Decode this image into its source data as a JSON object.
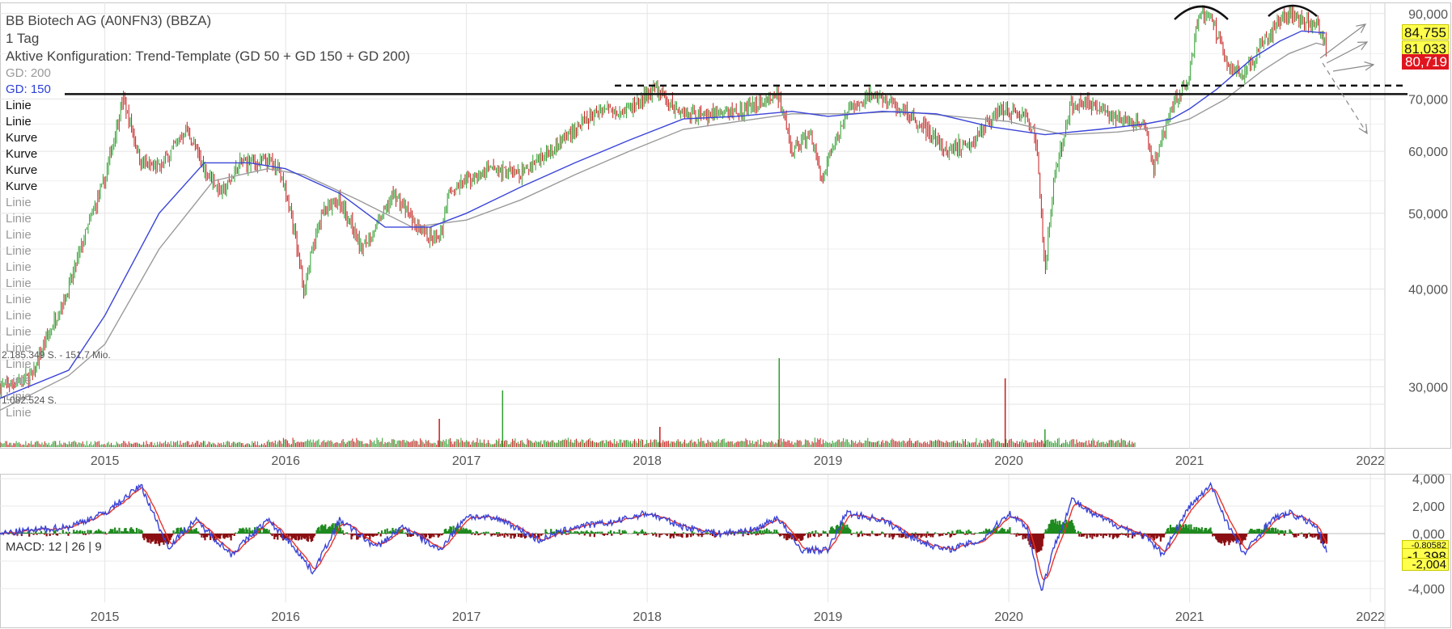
{
  "header": {
    "title": "BB Biotech AG (A0NFN3) (BBZA)",
    "interval": "1 Tag",
    "config": "Aktive Konfiguration: Trend-Template (GD 50 + GD 150 + GD 200)"
  },
  "legend": {
    "items": [
      "GD: 200",
      "GD: 150",
      "Linie",
      "Linie",
      "Kurve",
      "Kurve",
      "Kurve",
      "Kurve",
      "Linie",
      "Linie",
      "Linie",
      "Linie",
      "Linie",
      "Linie",
      "Linie",
      "Linie",
      "Linie",
      "Linie",
      "Linie",
      "Linie",
      "Linie",
      "Linie"
    ]
  },
  "volume": {
    "label1": "2.185.349 S. - 151,7 Mio.",
    "label2": "1.082.524 S."
  },
  "macd": {
    "label": "MACD: 12 | 26 | 9"
  },
  "price_tags": [
    "84,755",
    "81,033",
    "80,719"
  ],
  "macd_tags": [
    "-0,80582",
    "-1,398",
    "-2,004"
  ],
  "colors": {
    "candle_up": "#2e9e2e",
    "candle_down": "#c51b1b",
    "gd150": "#3a44d8",
    "gd200": "#9a9a9a",
    "macd_line": "#3a44d8",
    "signal_line": "#e8322a",
    "hist_up": "#1f8a1f",
    "hist_down": "#8b0f12",
    "tag_yellow": "#ffff4d",
    "tag_red": "#e0141e"
  },
  "chart_data": {
    "type": "line",
    "title": "BB Biotech AG (A0NFN3) (BBZA)",
    "y_scale": "log",
    "ylim": [
      25000,
      93000
    ],
    "y_ticks": [
      "90,000",
      "70,000",
      "60,000",
      "50,000",
      "40,000",
      "30,000"
    ],
    "x_ticks": [
      "2015",
      "2016",
      "2017",
      "2018",
      "2019",
      "2020",
      "2021",
      "2022"
    ],
    "x_range": [
      2014.42,
      2022.08
    ],
    "grid": true,
    "series": [
      {
        "name": "Kurs",
        "x": [
          2014.42,
          2014.6,
          2014.8,
          2015.0,
          2015.1,
          2015.2,
          2015.3,
          2015.45,
          2015.55,
          2015.65,
          2015.75,
          2015.85,
          2015.95,
          2016.02,
          2016.1,
          2016.2,
          2016.3,
          2016.42,
          2016.5,
          2016.6,
          2016.75,
          2016.85,
          2016.9,
          2017.0,
          2017.15,
          2017.3,
          2017.45,
          2017.6,
          2017.75,
          2017.9,
          2018.05,
          2018.15,
          2018.25,
          2018.4,
          2018.55,
          2018.72,
          2018.8,
          2018.9,
          2018.97,
          2019.1,
          2019.25,
          2019.4,
          2019.55,
          2019.65,
          2019.8,
          2019.95,
          2020.1,
          2020.15,
          2020.2,
          2020.25,
          2020.35,
          2020.45,
          2020.6,
          2020.75,
          2020.8,
          2020.9,
          2021.0,
          2021.05,
          2021.12,
          2021.2,
          2021.3,
          2021.4,
          2021.5,
          2021.55,
          2021.65,
          2021.72,
          2021.76
        ],
        "values": [
          30000,
          31000,
          40000,
          55000,
          70000,
          58000,
          57000,
          64000,
          57000,
          53000,
          58000,
          58000,
          58000,
          51000,
          40000,
          50000,
          52000,
          45000,
          48000,
          53000,
          47000,
          46000,
          53000,
          55000,
          57000,
          56000,
          60000,
          64000,
          68000,
          68000,
          72000,
          68000,
          67000,
          67000,
          68000,
          71000,
          60000,
          63000,
          55000,
          67000,
          71000,
          68000,
          64000,
          60000,
          62000,
          68000,
          66000,
          62000,
          42000,
          55000,
          69000,
          69000,
          66000,
          65000,
          57000,
          68000,
          75000,
          90000,
          89000,
          78000,
          75000,
          82000,
          88000,
          90000,
          88000,
          86000,
          80719
        ]
      },
      {
        "name": "GD: 150",
        "x": [
          2014.42,
          2014.8,
          2015.0,
          2015.3,
          2015.55,
          2015.8,
          2016.0,
          2016.3,
          2016.55,
          2016.8,
          2017.0,
          2017.3,
          2017.6,
          2017.9,
          2018.2,
          2018.5,
          2018.8,
          2019.0,
          2019.3,
          2019.6,
          2019.9,
          2020.2,
          2020.5,
          2020.75,
          2020.9,
          2021.0,
          2021.15,
          2021.35,
          2021.5,
          2021.62,
          2021.75
        ],
        "values": [
          29000,
          31500,
          37000,
          50000,
          58000,
          58000,
          57000,
          53000,
          48000,
          48000,
          50000,
          54000,
          58000,
          62000,
          66000,
          66500,
          67500,
          66500,
          67500,
          67000,
          64500,
          63000,
          64000,
          65000,
          66000,
          68000,
          72000,
          79000,
          83000,
          85500,
          85000
        ]
      },
      {
        "name": "GD: 200",
        "x": [
          2014.42,
          2014.8,
          2015.0,
          2015.3,
          2015.6,
          2015.9,
          2016.1,
          2016.4,
          2016.7,
          2017.0,
          2017.3,
          2017.6,
          2017.9,
          2018.2,
          2018.5,
          2018.8,
          2019.1,
          2019.4,
          2019.7,
          2020.0,
          2020.3,
          2020.6,
          2020.85,
          2021.0,
          2021.2,
          2021.4,
          2021.55,
          2021.7,
          2021.75
        ],
        "values": [
          28000,
          31000,
          34000,
          45000,
          55000,
          57000,
          56000,
          52000,
          48000,
          49000,
          52000,
          56000,
          60000,
          64000,
          65500,
          67000,
          67000,
          67500,
          66500,
          65500,
          63000,
          63500,
          64500,
          66000,
          70000,
          76000,
          80000,
          82500,
          82000
        ]
      },
      {
        "name": "MACD",
        "x": [
          2014.42,
          2014.8,
          2015.0,
          2015.2,
          2015.35,
          2015.5,
          2015.7,
          2015.9,
          2016.05,
          2016.15,
          2016.3,
          2016.5,
          2016.65,
          2016.85,
          2017.0,
          2017.2,
          2017.4,
          2017.6,
          2017.8,
          2018.0,
          2018.2,
          2018.4,
          2018.6,
          2018.72,
          2018.85,
          2019.0,
          2019.1,
          2019.3,
          2019.5,
          2019.65,
          2019.85,
          2020.0,
          2020.1,
          2020.18,
          2020.25,
          2020.35,
          2020.45,
          2020.6,
          2020.75,
          2020.85,
          2021.0,
          2021.12,
          2021.2,
          2021.3,
          2021.45,
          2021.55,
          2021.7,
          2021.76
        ],
        "values": [
          0,
          500,
          1500,
          3500,
          -1000,
          1000,
          -1500,
          1000,
          -1000,
          -2800,
          1000,
          -1000,
          500,
          -1200,
          1300,
          1000,
          -500,
          500,
          800,
          1500,
          500,
          0,
          300,
          1200,
          -1200,
          -1200,
          1500,
          1000,
          -500,
          -1200,
          -500,
          1500,
          500,
          -4200,
          -1000,
          2500,
          1500,
          600,
          -200,
          -1500,
          2000,
          3500,
          1000,
          -1500,
          1000,
          1500,
          600,
          -1398
        ]
      }
    ],
    "macd_ylim": [
      -5000,
      4000
    ],
    "macd_y_ticks": [
      "4,000",
      "2,000",
      "0,000",
      "-2,000",
      "-4,000"
    ],
    "resistance_levels": [
      71000,
      72800
    ]
  }
}
